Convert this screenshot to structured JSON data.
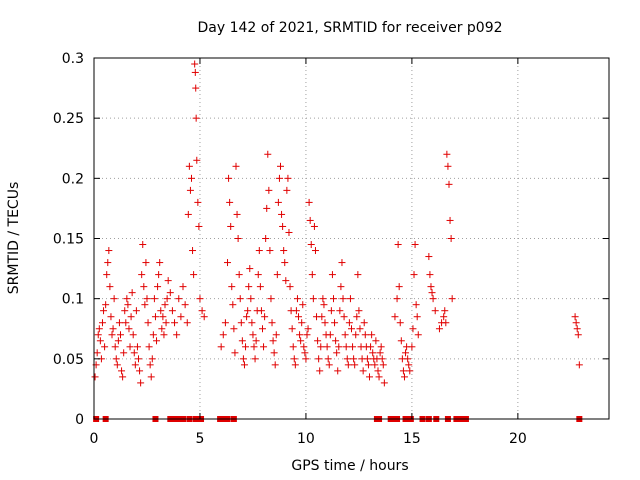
{
  "chart_data": {
    "type": "scatter",
    "title": "Day 142 of 2021, SRMTID for receiver p092",
    "xlabel": "GPS time / hours",
    "ylabel": "SRMTID / TECUs",
    "xlim": [
      0,
      24.3
    ],
    "ylim": [
      0,
      0.3
    ],
    "xticks": [
      0,
      5,
      10,
      15,
      20
    ],
    "xtick_labels": [
      "0",
      "5",
      "10",
      "15",
      "20"
    ],
    "yticks": [
      0,
      0.05,
      0.1,
      0.15,
      0.2,
      0.25,
      0.3
    ],
    "ytick_labels": [
      "0",
      "0.05",
      "0.1",
      "0.15",
      "0.2",
      "0.25",
      "0.3"
    ],
    "grid": true,
    "marker": "+",
    "color": "#e00000",
    "series": [
      {
        "name": "SRMTID",
        "points": [
          [
            0.05,
            0.035
          ],
          [
            0.1,
            0.045
          ],
          [
            0.15,
            0.055
          ],
          [
            0.2,
            0.07
          ],
          [
            0.25,
            0.075
          ],
          [
            0.3,
            0.065
          ],
          [
            0.35,
            0.05
          ],
          [
            0.4,
            0.08
          ],
          [
            0.45,
            0.09
          ],
          [
            0.5,
            0.06
          ],
          [
            0.55,
            0.095
          ],
          [
            0.6,
            0.12
          ],
          [
            0.65,
            0.13
          ],
          [
            0.7,
            0.14
          ],
          [
            0.75,
            0.11
          ],
          [
            0.8,
            0.085
          ],
          [
            0.85,
            0.07
          ],
          [
            0.9,
            0.075
          ],
          [
            0.95,
            0.1
          ],
          [
            1.0,
            0.06
          ],
          [
            1.05,
            0.05
          ],
          [
            1.1,
            0.045
          ],
          [
            1.15,
            0.065
          ],
          [
            1.2,
            0.08
          ],
          [
            1.25,
            0.07
          ],
          [
            1.3,
            0.04
          ],
          [
            1.35,
            0.035
          ],
          [
            1.4,
            0.055
          ],
          [
            1.45,
            0.09
          ],
          [
            1.5,
            0.08
          ],
          [
            1.55,
            0.1
          ],
          [
            1.6,
            0.095
          ],
          [
            1.65,
            0.075
          ],
          [
            1.7,
            0.06
          ],
          [
            1.75,
            0.085
          ],
          [
            1.8,
            0.105
          ],
          [
            1.85,
            0.07
          ],
          [
            1.9,
            0.055
          ],
          [
            1.95,
            0.045
          ],
          [
            2.0,
            0.09
          ],
          [
            2.05,
            0.06
          ],
          [
            2.1,
            0.05
          ],
          [
            2.15,
            0.04
          ],
          [
            2.2,
            0.03
          ],
          [
            2.25,
            0.12
          ],
          [
            2.3,
            0.145
          ],
          [
            2.35,
            0.11
          ],
          [
            2.4,
            0.095
          ],
          [
            2.45,
            0.13
          ],
          [
            2.5,
            0.1
          ],
          [
            2.55,
            0.08
          ],
          [
            2.6,
            0.06
          ],
          [
            2.65,
            0.045
          ],
          [
            2.7,
            0.035
          ],
          [
            2.75,
            0.05
          ],
          [
            2.8,
            0.07
          ],
          [
            2.85,
            0.1
          ],
          [
            2.9,
            0.085
          ],
          [
            2.95,
            0.065
          ],
          [
            3.0,
            0.11
          ],
          [
            3.05,
            0.12
          ],
          [
            3.1,
            0.13
          ],
          [
            3.15,
            0.09
          ],
          [
            3.2,
            0.075
          ],
          [
            3.25,
            0.085
          ],
          [
            3.3,
            0.07
          ],
          [
            3.35,
            0.095
          ],
          [
            3.4,
            0.08
          ],
          [
            3.45,
            0.1
          ],
          [
            3.5,
            0.115
          ],
          [
            3.6,
            0.105
          ],
          [
            3.7,
            0.09
          ],
          [
            3.8,
            0.08
          ],
          [
            3.9,
            0.07
          ],
          [
            4.0,
            0.1
          ],
          [
            4.1,
            0.085
          ],
          [
            4.2,
            0.11
          ],
          [
            4.3,
            0.095
          ],
          [
            4.4,
            0.08
          ],
          [
            4.45,
            0.17
          ],
          [
            4.5,
            0.21
          ],
          [
            4.55,
            0.19
          ],
          [
            4.6,
            0.2
          ],
          [
            4.65,
            0.14
          ],
          [
            4.7,
            0.12
          ],
          [
            4.75,
            0.295
          ],
          [
            4.78,
            0.288
          ],
          [
            4.8,
            0.275
          ],
          [
            4.82,
            0.25
          ],
          [
            4.85,
            0.215
          ],
          [
            4.9,
            0.18
          ],
          [
            4.95,
            0.16
          ],
          [
            5.0,
            0.1
          ],
          [
            5.1,
            0.09
          ],
          [
            5.2,
            0.085
          ],
          [
            6.0,
            0.06
          ],
          [
            6.1,
            0.07
          ],
          [
            6.2,
            0.08
          ],
          [
            6.3,
            0.13
          ],
          [
            6.35,
            0.2
          ],
          [
            6.4,
            0.18
          ],
          [
            6.45,
            0.16
          ],
          [
            6.5,
            0.11
          ],
          [
            6.55,
            0.095
          ],
          [
            6.6,
            0.075
          ],
          [
            6.65,
            0.055
          ],
          [
            6.7,
            0.21
          ],
          [
            6.75,
            0.17
          ],
          [
            6.8,
            0.15
          ],
          [
            6.85,
            0.12
          ],
          [
            6.9,
            0.1
          ],
          [
            6.95,
            0.08
          ],
          [
            7.0,
            0.065
          ],
          [
            7.05,
            0.05
          ],
          [
            7.1,
            0.045
          ],
          [
            7.15,
            0.06
          ],
          [
            7.2,
            0.085
          ],
          [
            7.25,
            0.09
          ],
          [
            7.3,
            0.11
          ],
          [
            7.35,
            0.125
          ],
          [
            7.4,
            0.1
          ],
          [
            7.45,
            0.08
          ],
          [
            7.5,
            0.07
          ],
          [
            7.55,
            0.06
          ],
          [
            7.6,
            0.05
          ],
          [
            7.65,
            0.065
          ],
          [
            7.7,
            0.09
          ],
          [
            7.75,
            0.12
          ],
          [
            7.8,
            0.14
          ],
          [
            7.85,
            0.11
          ],
          [
            7.9,
            0.09
          ],
          [
            7.95,
            0.075
          ],
          [
            8.0,
            0.06
          ],
          [
            8.05,
            0.085
          ],
          [
            8.1,
            0.15
          ],
          [
            8.15,
            0.175
          ],
          [
            8.2,
            0.22
          ],
          [
            8.25,
            0.19
          ],
          [
            8.3,
            0.14
          ],
          [
            8.35,
            0.1
          ],
          [
            8.4,
            0.08
          ],
          [
            8.45,
            0.065
          ],
          [
            8.5,
            0.055
          ],
          [
            8.55,
            0.045
          ],
          [
            8.6,
            0.07
          ],
          [
            8.65,
            0.12
          ],
          [
            8.7,
            0.18
          ],
          [
            8.75,
            0.2
          ],
          [
            8.8,
            0.21
          ],
          [
            8.85,
            0.17
          ],
          [
            8.9,
            0.16
          ],
          [
            8.95,
            0.14
          ],
          [
            9.0,
            0.13
          ],
          [
            9.05,
            0.115
          ],
          [
            9.1,
            0.19
          ],
          [
            9.15,
            0.2
          ],
          [
            9.2,
            0.155
          ],
          [
            9.25,
            0.11
          ],
          [
            9.3,
            0.09
          ],
          [
            9.35,
            0.075
          ],
          [
            9.4,
            0.06
          ],
          [
            9.45,
            0.05
          ],
          [
            9.5,
            0.045
          ],
          [
            9.55,
            0.09
          ],
          [
            9.6,
            0.1
          ],
          [
            9.65,
            0.085
          ],
          [
            9.7,
            0.07
          ],
          [
            9.75,
            0.065
          ],
          [
            9.8,
            0.08
          ],
          [
            9.85,
            0.095
          ],
          [
            9.9,
            0.06
          ],
          [
            9.95,
            0.055
          ],
          [
            10.0,
            0.05
          ],
          [
            10.05,
            0.07
          ],
          [
            10.1,
            0.075
          ],
          [
            10.15,
            0.18
          ],
          [
            10.2,
            0.165
          ],
          [
            10.25,
            0.145
          ],
          [
            10.3,
            0.12
          ],
          [
            10.35,
            0.1
          ],
          [
            10.4,
            0.16
          ],
          [
            10.45,
            0.14
          ],
          [
            10.5,
            0.085
          ],
          [
            10.55,
            0.065
          ],
          [
            10.6,
            0.05
          ],
          [
            10.65,
            0.04
          ],
          [
            10.7,
            0.06
          ],
          [
            10.75,
            0.085
          ],
          [
            10.8,
            0.1
          ],
          [
            10.85,
            0.095
          ],
          [
            10.9,
            0.08
          ],
          [
            10.95,
            0.07
          ],
          [
            11.0,
            0.06
          ],
          [
            11.05,
            0.05
          ],
          [
            11.1,
            0.045
          ],
          [
            11.15,
            0.07
          ],
          [
            11.2,
            0.09
          ],
          [
            11.25,
            0.12
          ],
          [
            11.3,
            0.1
          ],
          [
            11.35,
            0.08
          ],
          [
            11.4,
            0.065
          ],
          [
            11.45,
            0.055
          ],
          [
            11.5,
            0.04
          ],
          [
            11.55,
            0.06
          ],
          [
            11.6,
            0.09
          ],
          [
            11.65,
            0.11
          ],
          [
            11.7,
            0.13
          ],
          [
            11.75,
            0.1
          ],
          [
            11.8,
            0.085
          ],
          [
            11.85,
            0.07
          ],
          [
            11.9,
            0.06
          ],
          [
            11.95,
            0.05
          ],
          [
            12.0,
            0.045
          ],
          [
            12.05,
            0.08
          ],
          [
            12.1,
            0.1
          ],
          [
            12.15,
            0.075
          ],
          [
            12.2,
            0.06
          ],
          [
            12.25,
            0.05
          ],
          [
            12.3,
            0.045
          ],
          [
            12.35,
            0.07
          ],
          [
            12.4,
            0.085
          ],
          [
            12.45,
            0.12
          ],
          [
            12.5,
            0.09
          ],
          [
            12.55,
            0.075
          ],
          [
            12.6,
            0.06
          ],
          [
            12.65,
            0.05
          ],
          [
            12.7,
            0.04
          ],
          [
            12.75,
            0.08
          ],
          [
            12.8,
            0.07
          ],
          [
            12.85,
            0.06
          ],
          [
            12.9,
            0.05
          ],
          [
            12.95,
            0.045
          ],
          [
            13.0,
            0.035
          ],
          [
            13.05,
            0.06
          ],
          [
            13.1,
            0.07
          ],
          [
            13.15,
            0.055
          ],
          [
            13.2,
            0.05
          ],
          [
            13.25,
            0.045
          ],
          [
            13.3,
            0.065
          ],
          [
            13.35,
            0.05
          ],
          [
            13.4,
            0.04
          ],
          [
            13.45,
            0.035
          ],
          [
            13.5,
            0.055
          ],
          [
            13.55,
            0.06
          ],
          [
            13.6,
            0.05
          ],
          [
            13.65,
            0.045
          ],
          [
            13.7,
            0.03
          ],
          [
            14.2,
            0.085
          ],
          [
            14.3,
            0.1
          ],
          [
            14.35,
            0.145
          ],
          [
            14.4,
            0.11
          ],
          [
            14.45,
            0.08
          ],
          [
            14.5,
            0.065
          ],
          [
            14.55,
            0.05
          ],
          [
            14.6,
            0.04
          ],
          [
            14.65,
            0.035
          ],
          [
            14.7,
            0.055
          ],
          [
            14.75,
            0.06
          ],
          [
            14.8,
            0.05
          ],
          [
            14.85,
            0.045
          ],
          [
            14.9,
            0.04
          ],
          [
            15.0,
            0.06
          ],
          [
            15.05,
            0.075
          ],
          [
            15.1,
            0.12
          ],
          [
            15.15,
            0.145
          ],
          [
            15.2,
            0.095
          ],
          [
            15.25,
            0.085
          ],
          [
            15.3,
            0.07
          ],
          [
            15.8,
            0.135
          ],
          [
            15.85,
            0.12
          ],
          [
            15.9,
            0.11
          ],
          [
            15.95,
            0.105
          ],
          [
            16.0,
            0.1
          ],
          [
            16.1,
            0.09
          ],
          [
            16.3,
            0.075
          ],
          [
            16.4,
            0.08
          ],
          [
            16.5,
            0.085
          ],
          [
            16.55,
            0.09
          ],
          [
            16.6,
            0.08
          ],
          [
            16.65,
            0.22
          ],
          [
            16.7,
            0.21
          ],
          [
            16.75,
            0.195
          ],
          [
            16.8,
            0.165
          ],
          [
            16.85,
            0.15
          ],
          [
            16.9,
            0.1
          ],
          [
            22.7,
            0.085
          ],
          [
            22.75,
            0.08
          ],
          [
            22.8,
            0.075
          ],
          [
            22.85,
            0.07
          ],
          [
            22.9,
            0.045
          ]
        ]
      }
    ],
    "zero_flags": [
      0.1,
      0.55,
      2.9,
      3.6,
      3.8,
      3.95,
      4.2,
      4.5,
      4.8,
      5.0,
      5.05,
      5.95,
      6.05,
      6.15,
      6.3,
      6.6,
      13.35,
      13.45,
      14.0,
      14.15,
      14.3,
      14.7,
      14.9,
      14.95,
      15.5,
      15.8,
      16.15,
      16.7,
      17.1,
      17.3,
      17.55,
      22.9
    ]
  }
}
